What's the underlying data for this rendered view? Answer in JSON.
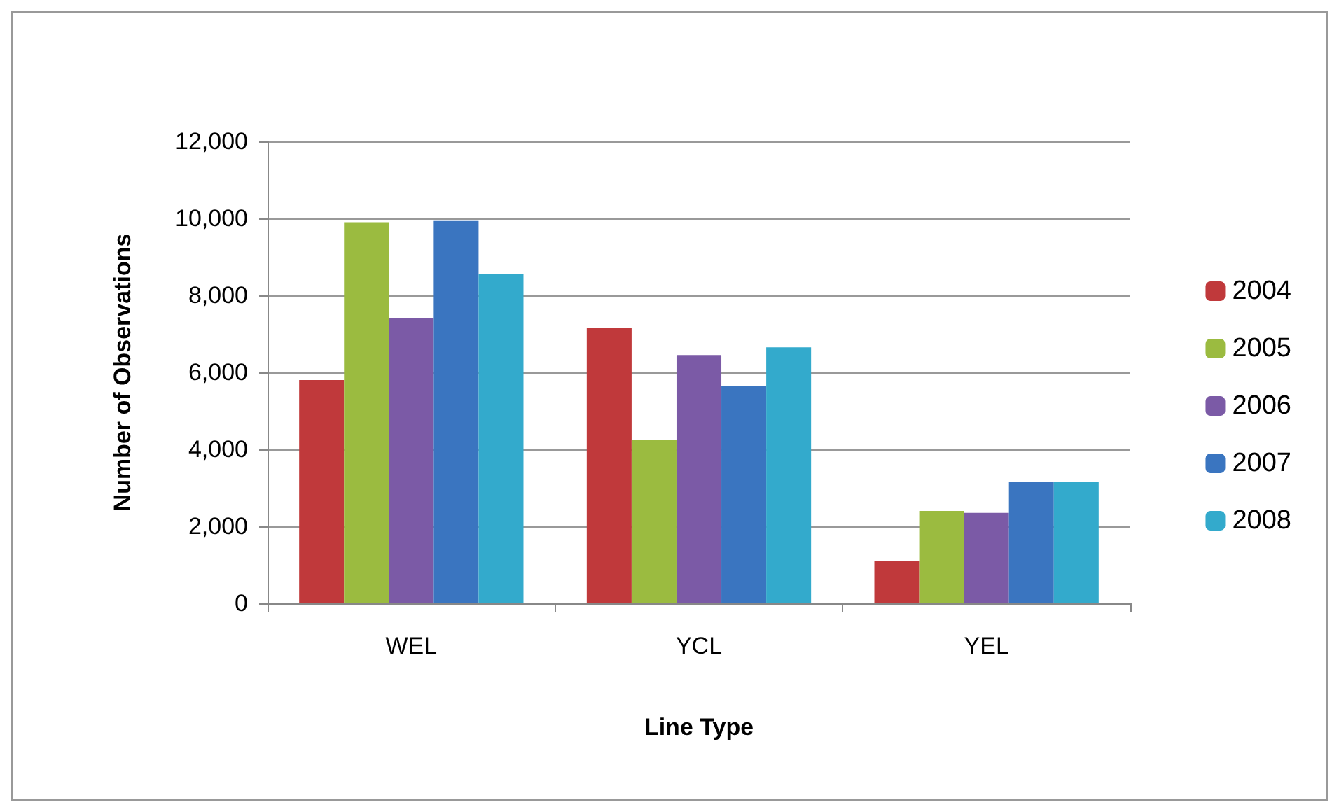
{
  "chart_data": {
    "type": "bar",
    "xlabel": "Line Type",
    "ylabel": "Number of Observations",
    "categories": [
      "WEL",
      "YCL",
      "YEL"
    ],
    "series": [
      {
        "name": "2004",
        "color": "#c0393b",
        "values": [
          5800,
          7150,
          1100
        ]
      },
      {
        "name": "2005",
        "color": "#9bbb40",
        "values": [
          9900,
          4250,
          2400
        ]
      },
      {
        "name": "2006",
        "color": "#7b5aa6",
        "values": [
          7400,
          6450,
          2350
        ]
      },
      {
        "name": "2007",
        "color": "#3a75c0",
        "values": [
          9950,
          5650,
          3150
        ]
      },
      {
        "name": "2008",
        "color": "#33aacc",
        "values": [
          8550,
          6650,
          3150
        ]
      }
    ],
    "ylim": [
      0,
      12000
    ],
    "yticks": [
      0,
      {
        "value": 2000,
        "label": "2,000"
      },
      {
        "value": 4000,
        "label": "4,000"
      },
      {
        "value": 6000,
        "label": "6,000"
      },
      {
        "value": 8000,
        "label": "8,000"
      },
      {
        "value": 10000,
        "label": "10,000"
      },
      {
        "value": 12000,
        "label": "12,000"
      }
    ],
    "grid": "y",
    "legend": "right"
  }
}
